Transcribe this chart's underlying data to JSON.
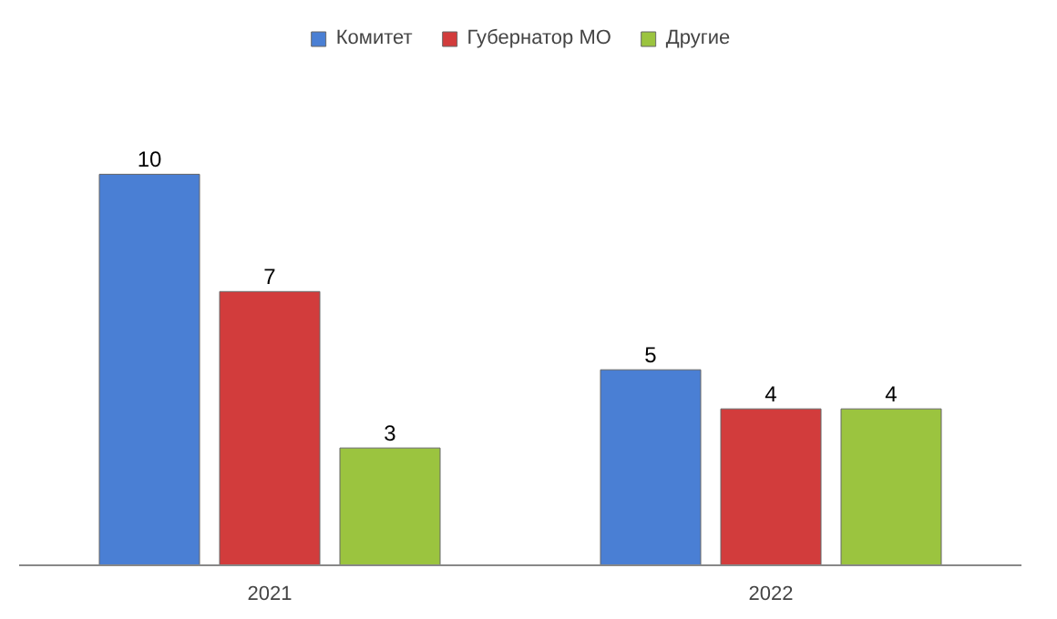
{
  "chart_data": {
    "type": "bar",
    "categories": [
      "2021",
      "2022"
    ],
    "series": [
      {
        "name": "Комитет",
        "color": "#4a7fd4",
        "values": [
          10,
          5
        ]
      },
      {
        "name": "Губернатор МО",
        "color": "#d23c3c",
        "values": [
          7,
          4
        ]
      },
      {
        "name": "Другие",
        "color": "#9bc43f",
        "values": [
          3,
          4
        ]
      }
    ],
    "data_labels": true,
    "legend": "top",
    "grid": false
  }
}
